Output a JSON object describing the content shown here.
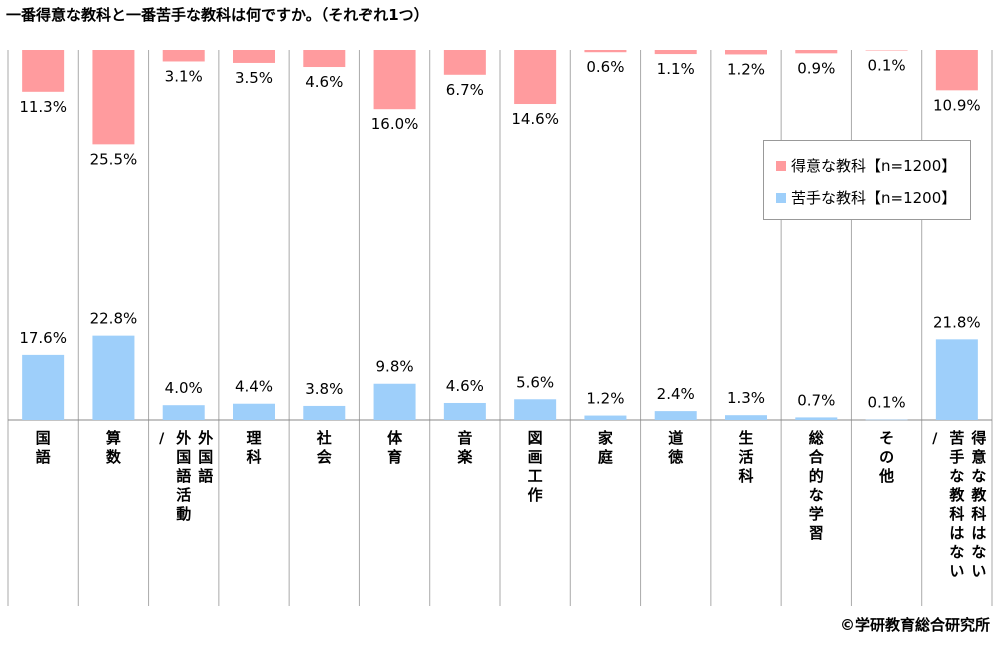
{
  "title": "一番得意な教科と一番苦手な教科は何ですか。（それぞれ1つ）",
  "credit": "©学研教育総合研究所",
  "colors": {
    "good": "#FF9B9E",
    "bad": "#9ECFFA",
    "grid": "#AAAAAA"
  },
  "chart_data": {
    "type": "bar",
    "categories": [
      "国語",
      "算数",
      "外国語／外国語活動",
      "理科",
      "社会",
      "体育",
      "音楽",
      "図画工作",
      "家庭",
      "道徳",
      "生活科",
      "総合的な学習",
      "その他",
      "得意な教科はない／苦手な教科はない"
    ],
    "category_columns": [
      [
        "国語"
      ],
      [
        "算数"
      ],
      [
        "外国語",
        "外国語活動",
        "／"
      ],
      [
        "理科"
      ],
      [
        "社会"
      ],
      [
        "体育"
      ],
      [
        "音楽"
      ],
      [
        "図画工作"
      ],
      [
        "家庭"
      ],
      [
        "道徳"
      ],
      [
        "生活科"
      ],
      [
        "総合的な学習"
      ],
      [
        "その他"
      ],
      [
        "得意な教科はない",
        "苦手な教科はない",
        "／"
      ]
    ],
    "series": [
      {
        "name": "得意な教科【n=1200】",
        "values": [
          11.3,
          25.5,
          3.1,
          3.5,
          4.6,
          16.0,
          6.7,
          14.6,
          0.6,
          1.1,
          1.2,
          0.9,
          0.1,
          10.9
        ],
        "labels": [
          "11.3%",
          "25.5%",
          "3.1%",
          "3.5%",
          "4.6%",
          "16.0%",
          "6.7%",
          "14.6%",
          "0.6%",
          "1.1%",
          "1.2%",
          "0.9%",
          "0.1%",
          "10.9%"
        ]
      },
      {
        "name": "苦手な教科【n=1200】",
        "values": [
          17.6,
          22.8,
          4.0,
          4.4,
          3.8,
          9.8,
          4.6,
          5.6,
          1.2,
          2.4,
          1.3,
          0.7,
          0.1,
          21.8
        ],
        "labels": [
          "17.6%",
          "22.8%",
          "4.0%",
          "4.4%",
          "3.8%",
          "9.8%",
          "4.6%",
          "5.6%",
          "1.2%",
          "2.4%",
          "1.3%",
          "0.7%",
          "0.1%",
          "21.8%"
        ]
      }
    ],
    "legend_position": "right"
  }
}
